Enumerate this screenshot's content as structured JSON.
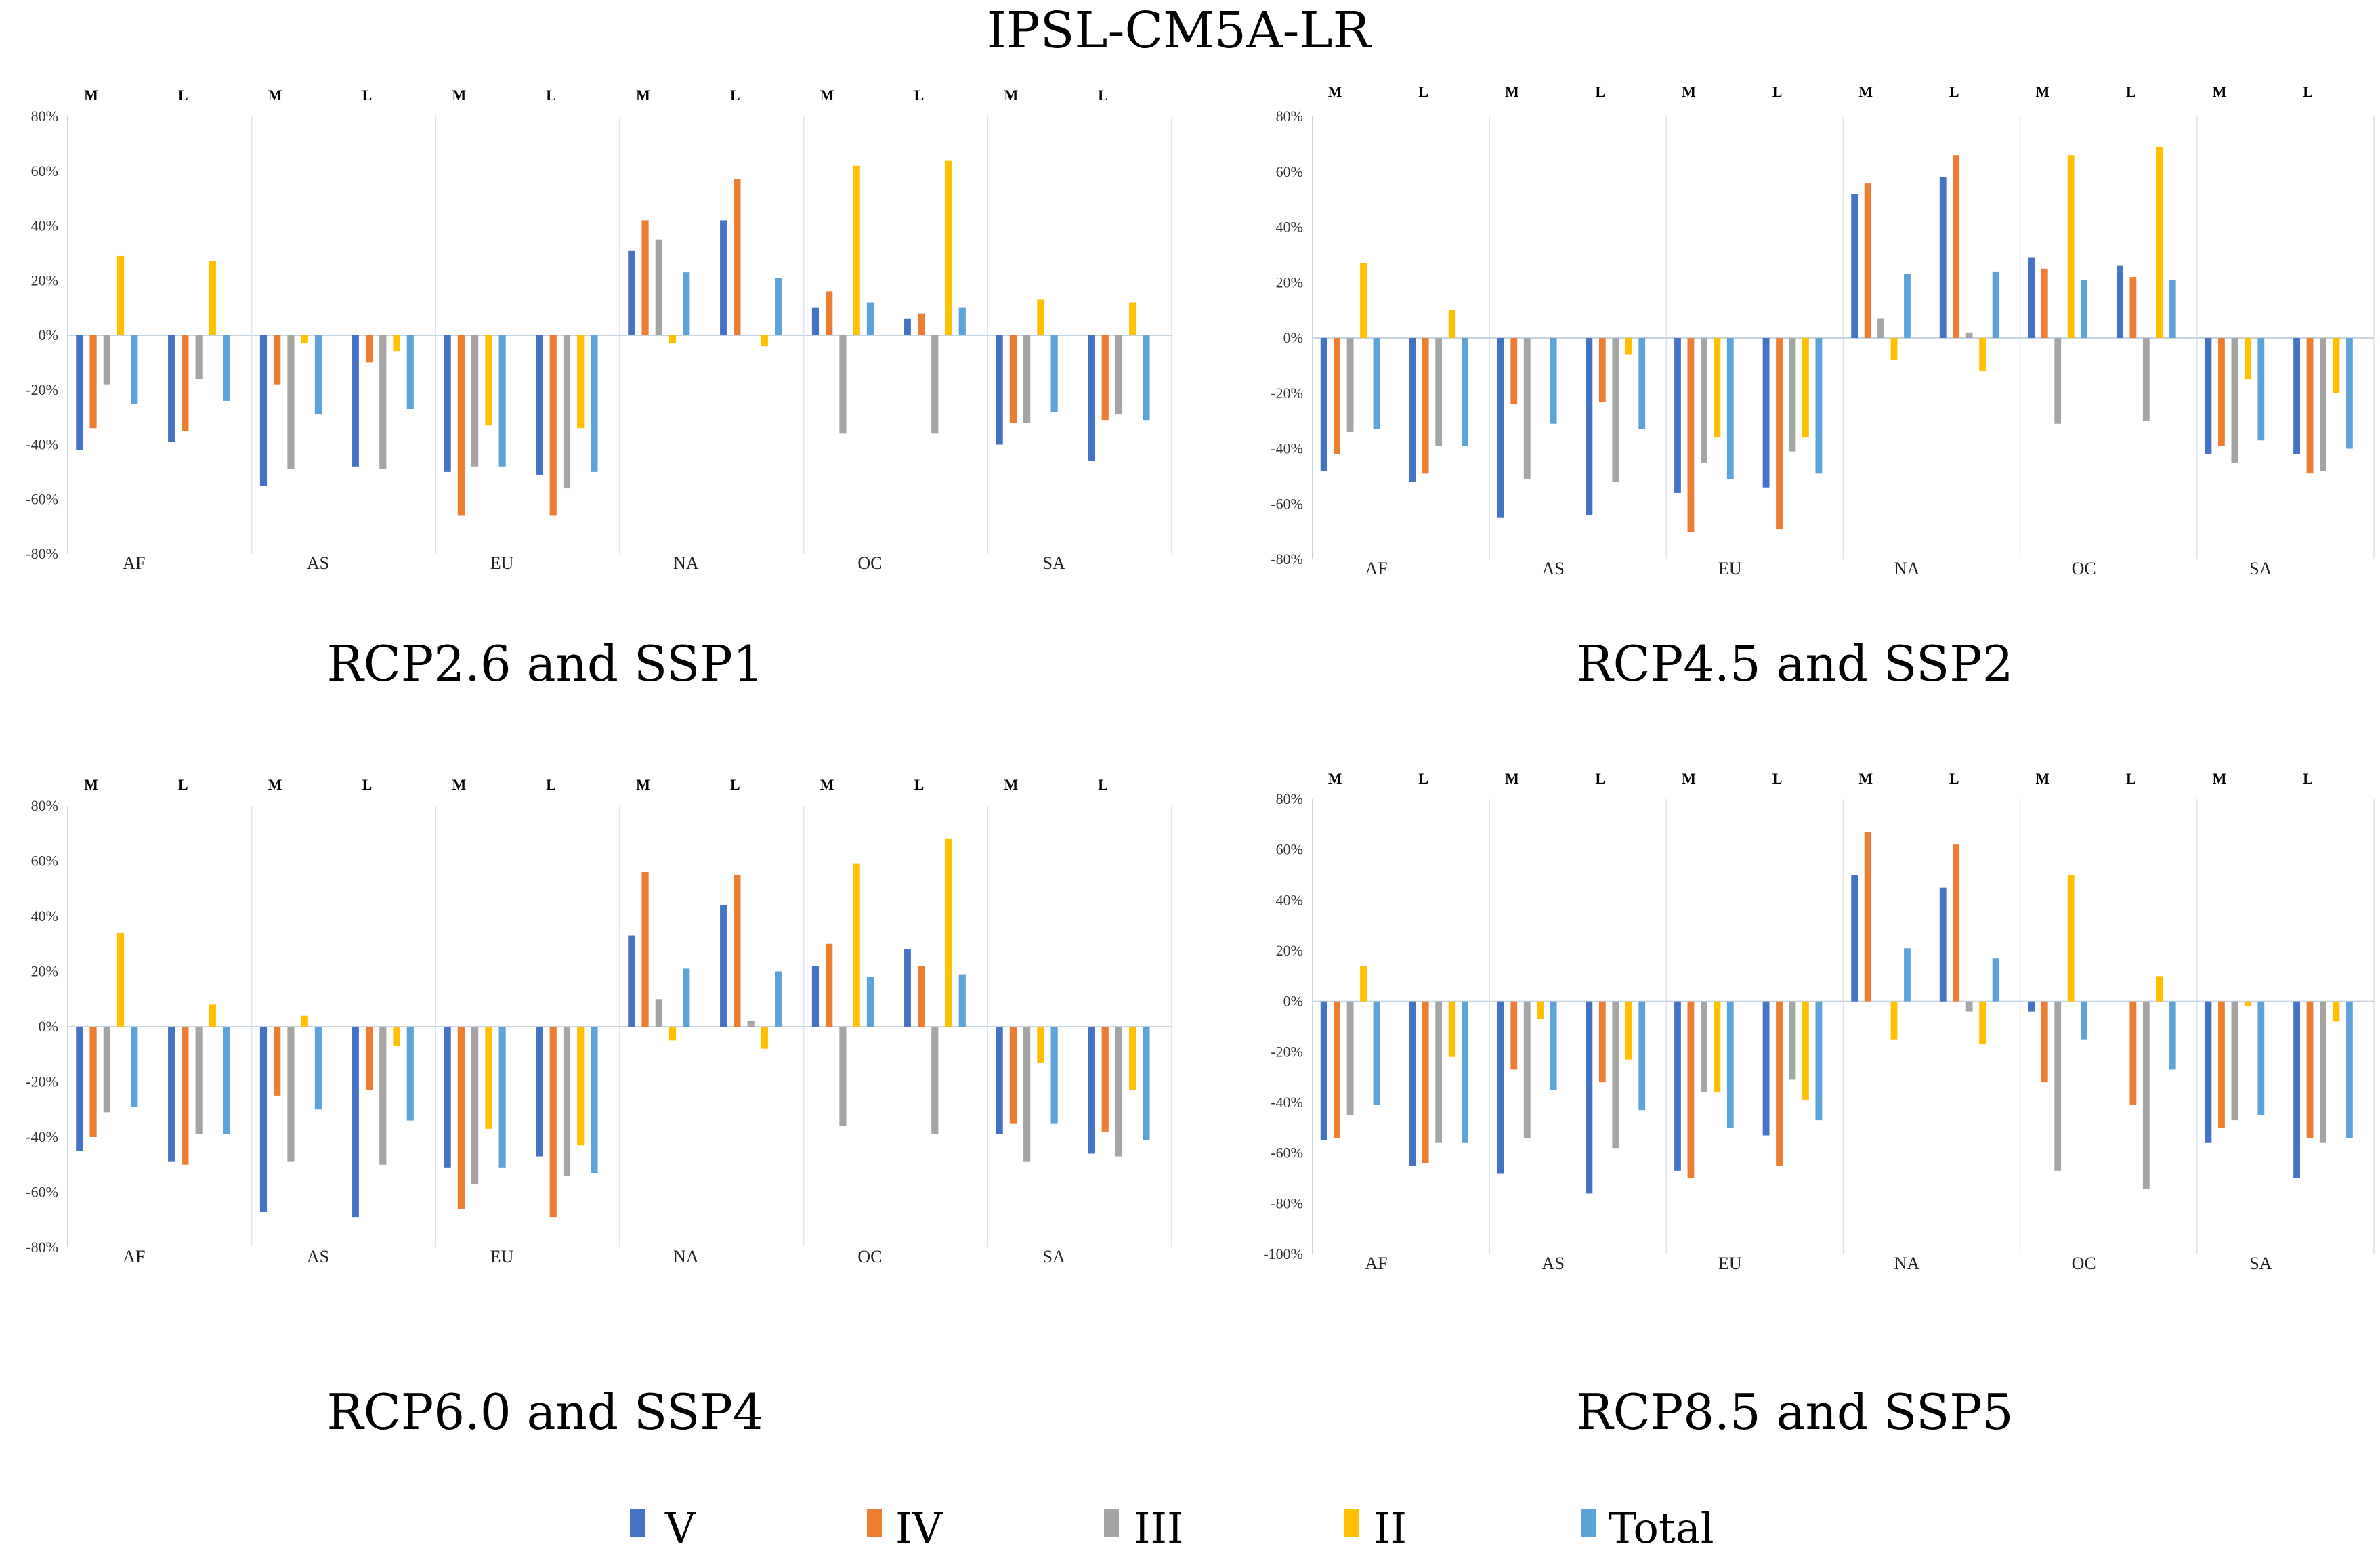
{
  "figure_title": "IPSL-CM5A-LR",
  "colors": {
    "V": "#4472C4",
    "IV": "#ED7D31",
    "III": "#A5A5A5",
    "II": "#FFC000",
    "Total": "#5BA3D9",
    "grid": "#dde3ea"
  },
  "legend": {
    "items": [
      {
        "key": "V",
        "label": "V"
      },
      {
        "key": "IV",
        "label": "IV"
      },
      {
        "key": "III",
        "label": "III"
      },
      {
        "key": "II",
        "label": "II"
      },
      {
        "key": "Total",
        "label": "Total"
      }
    ]
  },
  "chart_data": [
    {
      "type": "bar",
      "title": "RCP2.6 and SSP1",
      "regions": [
        "AF",
        "AS",
        "EU",
        "NA",
        "OC",
        "SA"
      ],
      "periods": [
        "M",
        "L"
      ],
      "series_names": [
        "V",
        "IV",
        "III",
        "II",
        "Total"
      ],
      "ylim": [
        -80,
        80
      ],
      "yticks": [
        "80%",
        "60%",
        "40%",
        "20%",
        "0%",
        "-20%",
        "-40%",
        "-60%",
        "-80%"
      ],
      "values": {
        "AF": {
          "M": [
            -42,
            -34,
            -18,
            29,
            -25
          ],
          "L": [
            -39,
            -35,
            -16,
            27,
            -24
          ]
        },
        "AS": {
          "M": [
            -55,
            -18,
            -49,
            -3,
            -29
          ],
          "L": [
            -48,
            -10,
            -49,
            -6,
            -27
          ]
        },
        "EU": {
          "M": [
            -50,
            -66,
            -48,
            -33,
            -48
          ],
          "L": [
            -51,
            -66,
            -56,
            -34,
            -50
          ]
        },
        "NA": {
          "M": [
            31,
            42,
            35,
            -3,
            23
          ],
          "L": [
            42,
            57,
            0,
            -4,
            21
          ]
        },
        "OC": {
          "M": [
            10,
            16,
            -36,
            62,
            12
          ],
          "L": [
            6,
            8,
            -36,
            64,
            10
          ]
        },
        "SA": {
          "M": [
            -40,
            -32,
            -32,
            13,
            -28
          ],
          "L": [
            -46,
            -31,
            -29,
            12,
            -31
          ]
        }
      }
    },
    {
      "type": "bar",
      "title": "RCP4.5 and SSP2",
      "regions": [
        "AF",
        "AS",
        "EU",
        "NA",
        "OC",
        "SA"
      ],
      "periods": [
        "M",
        "L"
      ],
      "series_names": [
        "V",
        "IV",
        "III",
        "II",
        "Total"
      ],
      "ylim": [
        -80,
        80
      ],
      "yticks": [
        "80%",
        "60%",
        "40%",
        "20%",
        "0%",
        "-20%",
        "-40%",
        "-60%",
        "-80%"
      ],
      "values": {
        "AF": {
          "M": [
            -48,
            -42,
            -34,
            27,
            -33
          ],
          "L": [
            -52,
            -49,
            -39,
            10,
            -39
          ]
        },
        "AS": {
          "M": [
            -65,
            -24,
            -51,
            0,
            -31
          ],
          "L": [
            -64,
            -23,
            -52,
            -6,
            -33
          ]
        },
        "EU": {
          "M": [
            -56,
            -70,
            -45,
            -36,
            -51
          ],
          "L": [
            -54,
            -69,
            -41,
            -36,
            -49
          ]
        },
        "NA": {
          "M": [
            52,
            56,
            7,
            -8,
            23
          ],
          "L": [
            58,
            66,
            2,
            -12,
            24
          ]
        },
        "OC": {
          "M": [
            29,
            25,
            -31,
            66,
            21
          ],
          "L": [
            26,
            22,
            -30,
            69,
            21
          ]
        },
        "SA": {
          "M": [
            -42,
            -39,
            -45,
            -15,
            -37
          ],
          "L": [
            -42,
            -49,
            -48,
            -20,
            -40
          ]
        }
      }
    },
    {
      "type": "bar",
      "title": "RCP6.0 and SSP4",
      "regions": [
        "AF",
        "AS",
        "EU",
        "NA",
        "OC",
        "SA"
      ],
      "periods": [
        "M",
        "L"
      ],
      "series_names": [
        "V",
        "IV",
        "III",
        "II",
        "Total"
      ],
      "ylim": [
        -80,
        80
      ],
      "yticks": [
        "80%",
        "60%",
        "40%",
        "20%",
        "0%",
        "-20%",
        "-40%",
        "-60%",
        "-80%"
      ],
      "values": {
        "AF": {
          "M": [
            -45,
            -40,
            -31,
            34,
            -29
          ],
          "L": [
            -49,
            -50,
            -39,
            8,
            -39
          ]
        },
        "AS": {
          "M": [
            -67,
            -25,
            -49,
            4,
            -30
          ],
          "L": [
            -69,
            -23,
            -50,
            -7,
            -34
          ]
        },
        "EU": {
          "M": [
            -51,
            -66,
            -57,
            -37,
            -51
          ],
          "L": [
            -47,
            -69,
            -54,
            -43,
            -53
          ]
        },
        "NA": {
          "M": [
            33,
            56,
            10,
            -5,
            21
          ],
          "L": [
            44,
            55,
            2,
            -8,
            20
          ]
        },
        "OC": {
          "M": [
            22,
            30,
            -36,
            59,
            18
          ],
          "L": [
            28,
            22,
            -39,
            68,
            19
          ]
        },
        "SA": {
          "M": [
            -39,
            -35,
            -49,
            -13,
            -35
          ],
          "L": [
            -46,
            -38,
            -47,
            -23,
            -41
          ]
        }
      }
    },
    {
      "type": "bar",
      "title": "RCP8.5 and SSP5",
      "regions": [
        "AF",
        "AS",
        "EU",
        "NA",
        "OC",
        "SA"
      ],
      "periods": [
        "M",
        "L"
      ],
      "series_names": [
        "V",
        "IV",
        "III",
        "II",
        "Total"
      ],
      "ylim": [
        -100,
        80
      ],
      "yticks": [
        "80%",
        "60%",
        "40%",
        "20%",
        "0%",
        "-20%",
        "-40%",
        "-60%",
        "-80%",
        "-100%"
      ],
      "values": {
        "AF": {
          "M": [
            -55,
            -54,
            -45,
            14,
            -41
          ],
          "L": [
            -65,
            -64,
            -56,
            -22,
            -56
          ]
        },
        "AS": {
          "M": [
            -68,
            -27,
            -54,
            -7,
            -35
          ],
          "L": [
            -76,
            -32,
            -58,
            -23,
            -43
          ]
        },
        "EU": {
          "M": [
            -67,
            -70,
            -36,
            -36,
            -50
          ],
          "L": [
            -53,
            -65,
            -31,
            -39,
            -47
          ]
        },
        "NA": {
          "M": [
            50,
            67,
            0,
            -15,
            21
          ],
          "L": [
            45,
            62,
            -4,
            -17,
            17
          ]
        },
        "OC": {
          "M": [
            -4,
            -32,
            -67,
            50,
            -15
          ],
          "L": [
            0,
            -41,
            -74,
            10,
            -27
          ]
        },
        "SA": {
          "M": [
            -56,
            -50,
            -47,
            -2,
            -45
          ],
          "L": [
            -70,
            -54,
            -56,
            -8,
            -54
          ]
        }
      }
    }
  ]
}
